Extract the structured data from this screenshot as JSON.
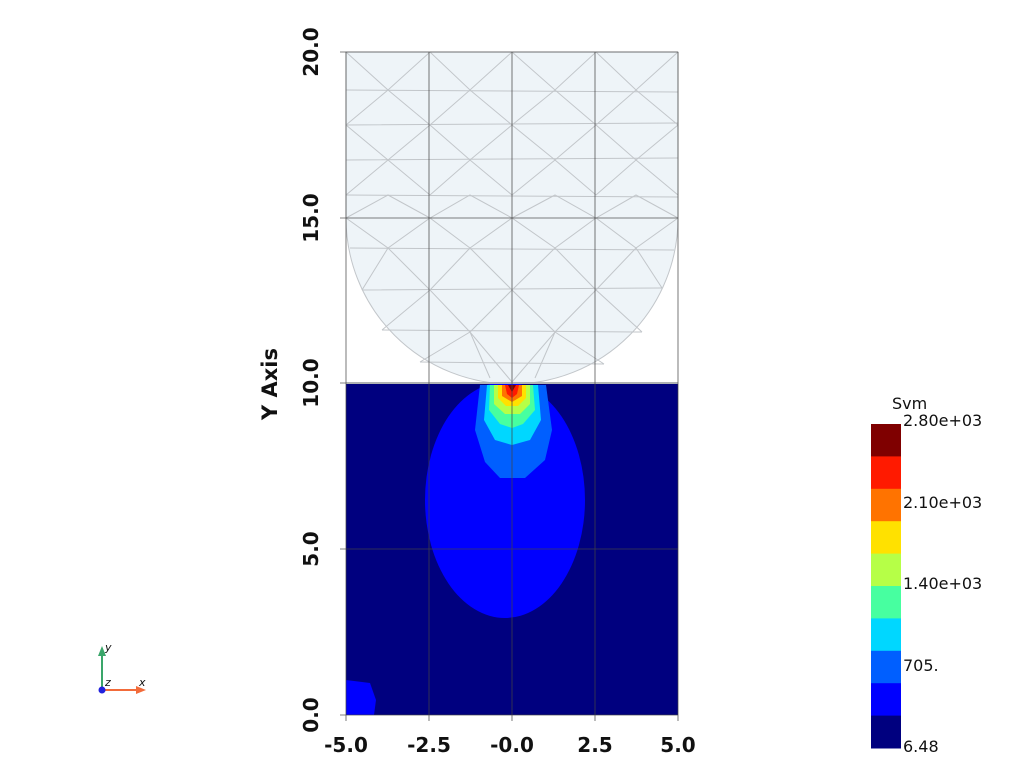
{
  "plot": {
    "y_axis_title": "Y Axis",
    "x_ticks": [
      "-5.0",
      "-2.5",
      "-0.0",
      "2.5",
      "5.0"
    ],
    "y_ticks": [
      "0.0",
      "5.0",
      "10.0",
      "15.0",
      "20.0"
    ],
    "x_range": [
      -5,
      5
    ],
    "y_range": [
      0,
      20
    ]
  },
  "colorbar": {
    "title": "Svm",
    "labels": [
      "2.80e+03",
      "2.10e+03",
      "1.40e+03",
      "705.",
      "6.48"
    ],
    "range": [
      6.48,
      2800
    ],
    "colors": [
      "#7f0000",
      "#ff1a00",
      "#ff7300",
      "#ffe100",
      "#b6ff47",
      "#47ffa0",
      "#00d7ff",
      "#005fff",
      "#0000ff",
      "#00007f"
    ]
  },
  "orientation_axes": {
    "y": "y",
    "z": "z",
    "x": "x"
  },
  "colors": {
    "background": "#ffffff",
    "mesh_fill": "#eef4f8",
    "mesh_line": "#c2c6ca",
    "grid": "#444444",
    "x_axis_color": "#f26b3a",
    "y_axis_color": "#3aa66a",
    "z_axis_color": "#2222dd"
  }
}
